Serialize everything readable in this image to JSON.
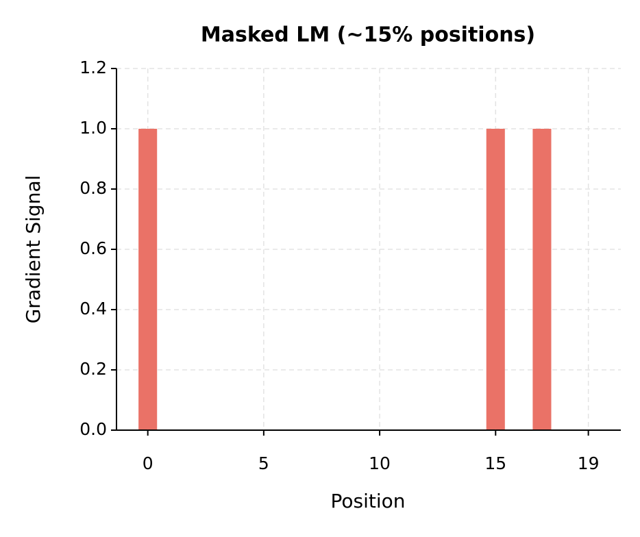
{
  "chart_data": {
    "type": "bar",
    "title": "Masked LM (~15% positions)",
    "x_label": "Position",
    "y_label": "Gradient Signal",
    "x": [
      0,
      1,
      2,
      3,
      4,
      5,
      6,
      7,
      8,
      9,
      10,
      11,
      12,
      13,
      14,
      15,
      16,
      17,
      18,
      19
    ],
    "values": [
      1,
      0,
      0,
      0,
      0,
      0,
      0,
      0,
      0,
      0,
      0,
      0,
      0,
      0,
      0,
      1,
      0,
      1,
      0,
      0
    ],
    "color": "#ea7267",
    "xlim": [
      -1.35,
      20.4
    ],
    "xticks": [
      0,
      5,
      10,
      15,
      19
    ],
    "ylim": [
      0,
      1.2
    ],
    "yticks": [
      {
        "value": 0,
        "label": "0.0"
      },
      0.2,
      0.4,
      0.6,
      0.8,
      {
        "value": 1,
        "label": "1.0"
      },
      1.2
    ],
    "grid": true
  }
}
